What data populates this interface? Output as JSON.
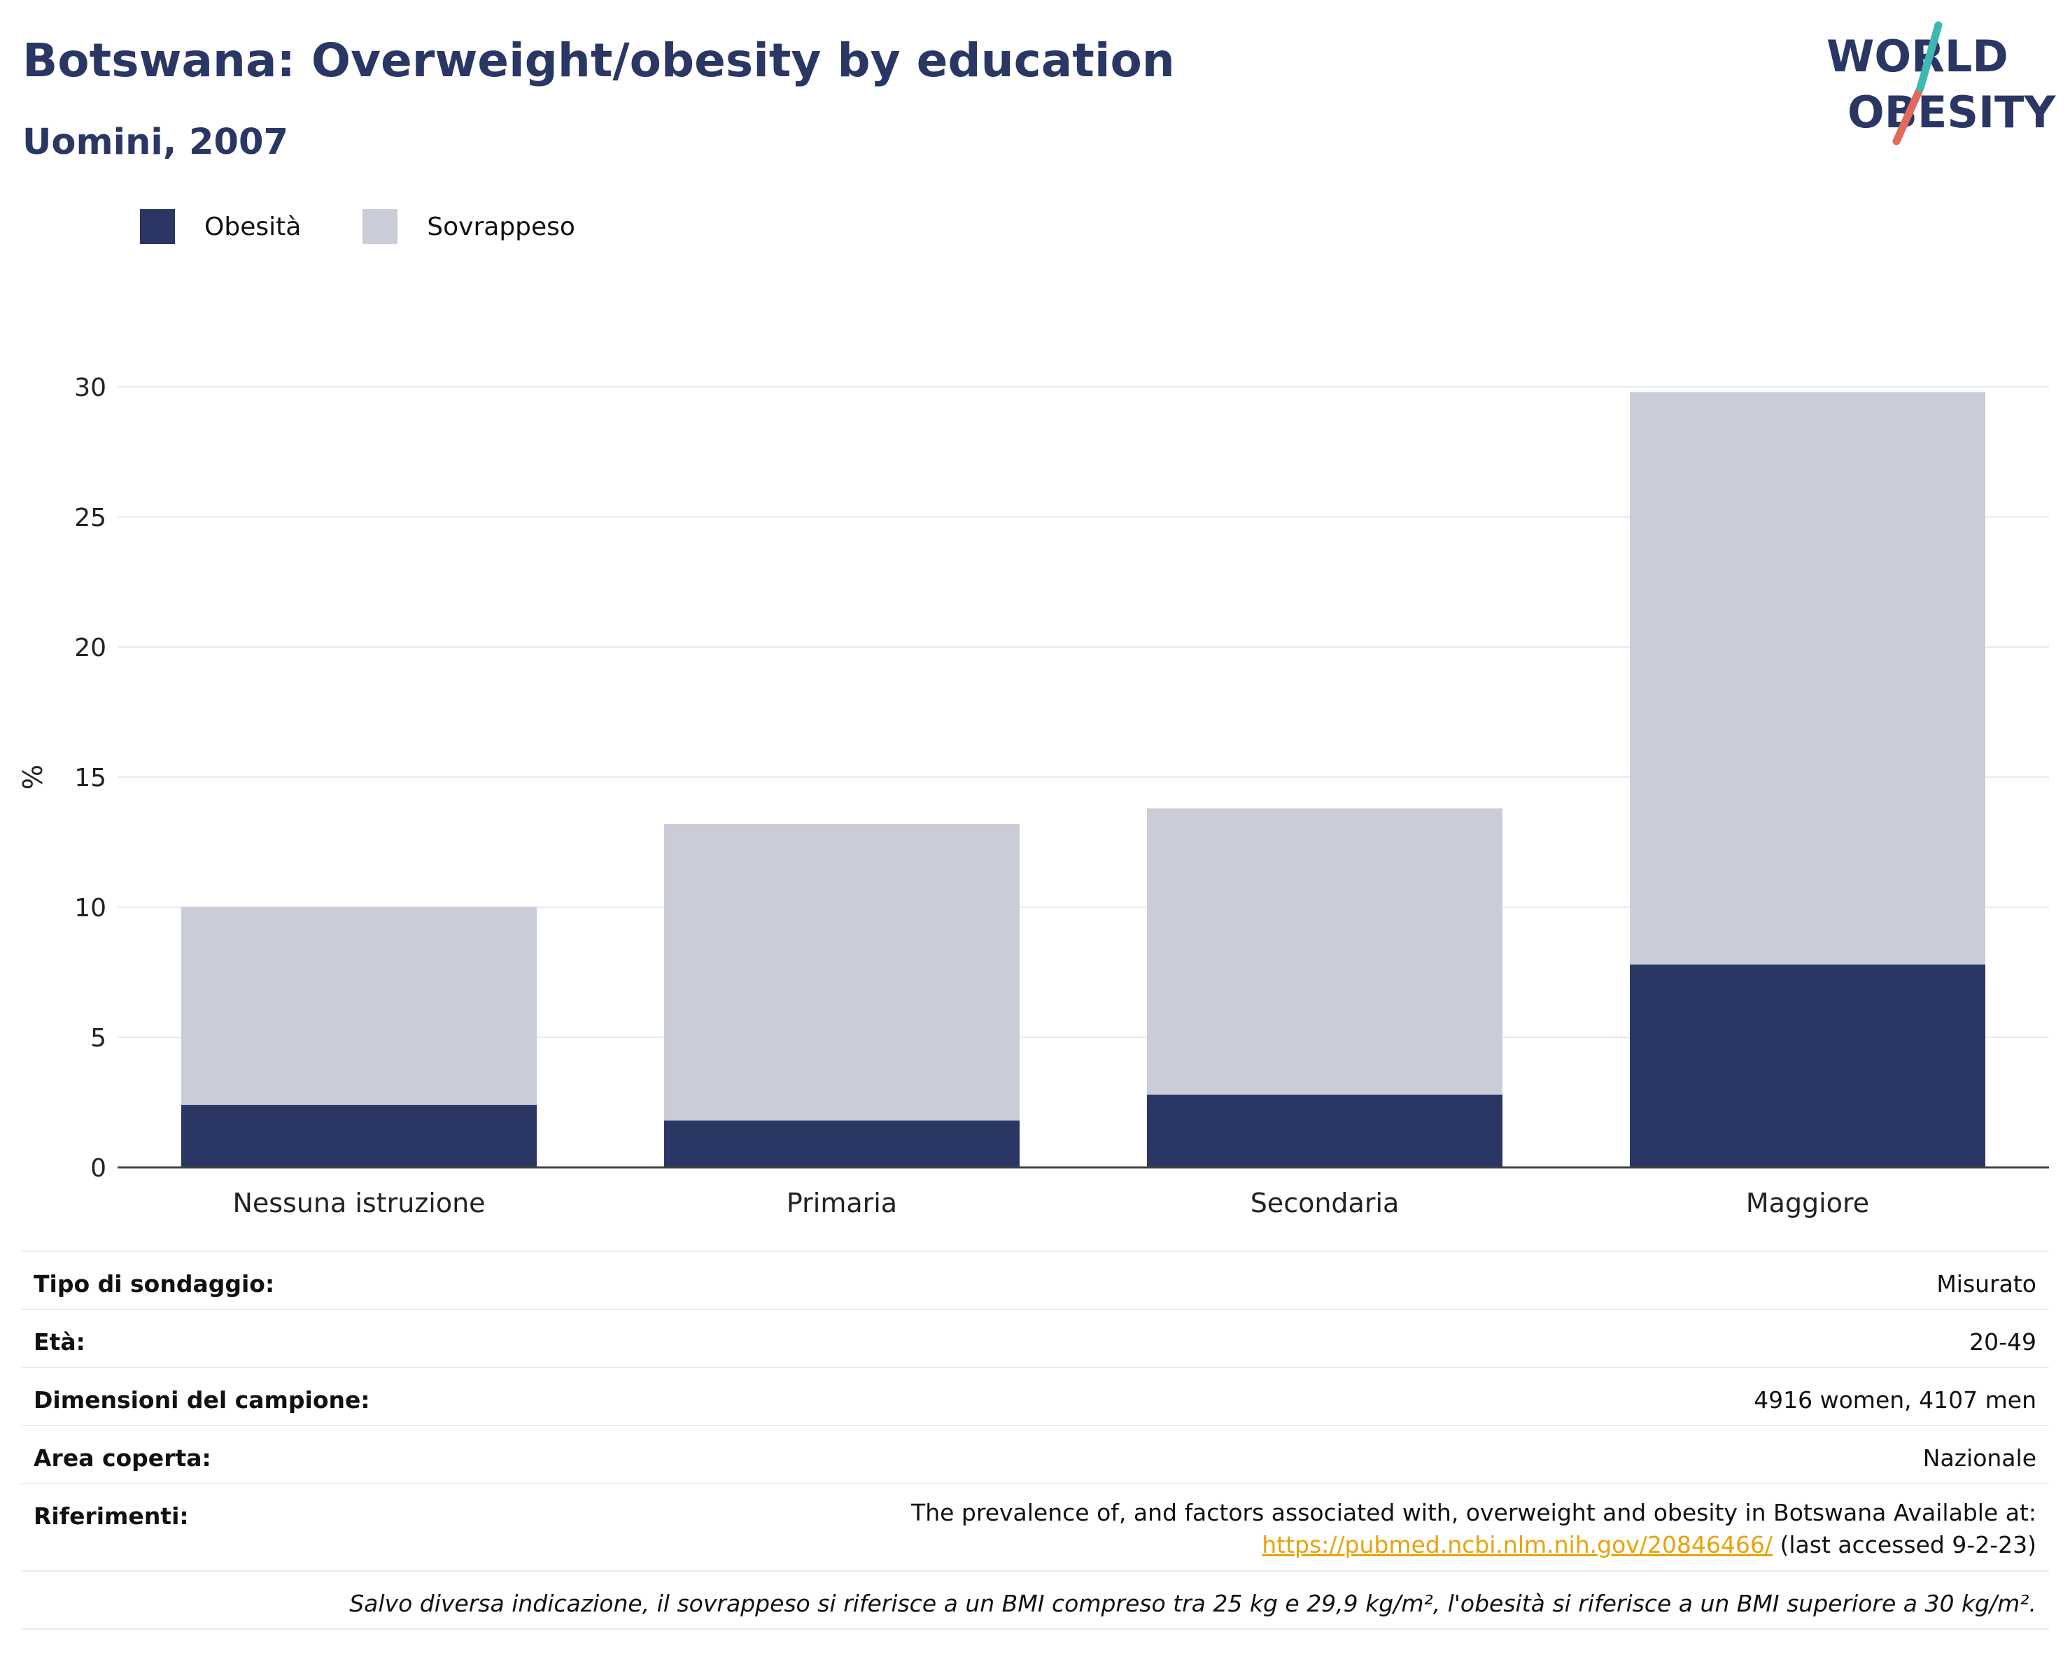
{
  "header": {
    "title": "Botswana: Overweight/obesity by education",
    "subtitle": "Uomini, 2007",
    "logo_line1": "WORLD",
    "logo_line2": "OBESITY"
  },
  "legend": [
    {
      "label": "Obesità",
      "color": "#2a3664"
    },
    {
      "label": "Sovrappeso",
      "color": "#caccd8"
    }
  ],
  "chart_data": {
    "type": "bar",
    "stacked": true,
    "categories": [
      "Nessuna istruzione",
      "Primaria",
      "Secondaria",
      "Maggiore"
    ],
    "series": [
      {
        "name": "Obesità",
        "color": "#2a3664",
        "values": [
          2.4,
          1.8,
          2.8,
          7.8
        ]
      },
      {
        "name": "Sovrappeso",
        "color": "#caccd8",
        "values": [
          7.6,
          11.4,
          11.0,
          22.0
        ]
      }
    ],
    "ylabel": "%",
    "ylim": [
      0,
      30
    ],
    "yticks": [
      0,
      5,
      10,
      15,
      20,
      25,
      30
    ],
    "grid": true,
    "legend_position": "top-left"
  },
  "meta": {
    "rows": [
      {
        "label": "Tipo di sondaggio:",
        "value": "Misurato"
      },
      {
        "label": "Età:",
        "value": "20-49"
      },
      {
        "label": "Dimensioni del campione:",
        "value": "4916 women, 4107 men"
      },
      {
        "label": "Area coperta:",
        "value": "Nazionale"
      }
    ],
    "references_label": "Riferimenti:",
    "references_text": "The prevalence of, and factors associated with, overweight and obesity in Botswana Available at:",
    "references_link": "https://pubmed.ncbi.nlm.nih.gov/20846466/",
    "references_suffix": " (last accessed 9-2-23)",
    "note": "Salvo diversa indicazione, il sovrappeso si riferisce a un BMI compreso tra 25 kg e 29,9 kg/m², l'obesità si riferisce a un BMI superiore a 30 kg/m²."
  }
}
